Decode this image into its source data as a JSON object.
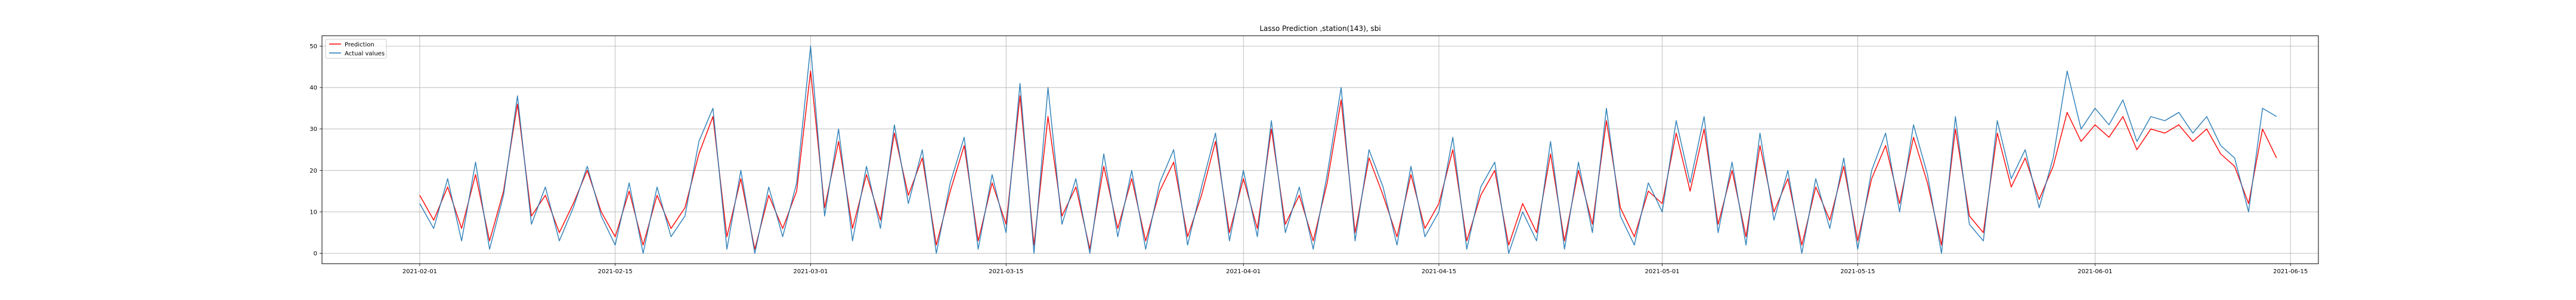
{
  "chart_data": {
    "type": "line",
    "title": "Lasso Prediction ,station(143), sbi",
    "xlabel": "",
    "ylabel": "",
    "x_domain": [
      "2021-01-25",
      "2021-06-17"
    ],
    "x_ticks": [
      "2021-02-01",
      "2021-02-15",
      "2021-03-01",
      "2021-03-15",
      "2021-04-01",
      "2021-04-15",
      "2021-05-01",
      "2021-05-15",
      "2021-06-01",
      "2021-06-15"
    ],
    "ylim": [
      -2.5,
      52.5
    ],
    "y_ticks": [
      0,
      10,
      20,
      30,
      40,
      50
    ],
    "grid": true,
    "legend_position": "top-left",
    "colors": {
      "prediction": "#ff0000",
      "actual": "#1f77b4"
    },
    "series": [
      {
        "name": "Prediction",
        "points": [
          [
            "2021-02-01",
            14
          ],
          [
            "2021-02-02",
            8
          ],
          [
            "2021-02-03",
            16
          ],
          [
            "2021-02-04",
            6
          ],
          [
            "2021-02-05",
            19
          ],
          [
            "2021-02-06",
            3
          ],
          [
            "2021-02-07",
            15
          ],
          [
            "2021-02-08",
            36
          ],
          [
            "2021-02-09",
            9
          ],
          [
            "2021-02-10",
            14
          ],
          [
            "2021-02-11",
            5
          ],
          [
            "2021-02-12",
            12
          ],
          [
            "2021-02-13",
            20
          ],
          [
            "2021-02-14",
            10
          ],
          [
            "2021-02-15",
            4
          ],
          [
            "2021-02-16",
            15
          ],
          [
            "2021-02-17",
            2
          ],
          [
            "2021-02-18",
            14
          ],
          [
            "2021-02-19",
            6
          ],
          [
            "2021-02-20",
            11
          ],
          [
            "2021-02-21",
            24
          ],
          [
            "2021-02-22",
            33
          ],
          [
            "2021-02-23",
            4
          ],
          [
            "2021-02-24",
            18
          ],
          [
            "2021-02-25",
            1
          ],
          [
            "2021-02-26",
            14
          ],
          [
            "2021-02-27",
            6
          ],
          [
            "2021-02-28",
            15
          ],
          [
            "2021-03-01",
            44
          ],
          [
            "2021-03-02",
            11
          ],
          [
            "2021-03-03",
            27
          ],
          [
            "2021-03-04",
            6
          ],
          [
            "2021-03-05",
            19
          ],
          [
            "2021-03-06",
            8
          ],
          [
            "2021-03-07",
            29
          ],
          [
            "2021-03-08",
            14
          ],
          [
            "2021-03-09",
            23
          ],
          [
            "2021-03-10",
            2
          ],
          [
            "2021-03-11",
            15
          ],
          [
            "2021-03-12",
            26
          ],
          [
            "2021-03-13",
            3
          ],
          [
            "2021-03-14",
            17
          ],
          [
            "2021-03-15",
            7
          ],
          [
            "2021-03-16",
            38
          ],
          [
            "2021-03-17",
            2
          ],
          [
            "2021-03-18",
            33
          ],
          [
            "2021-03-19",
            9
          ],
          [
            "2021-03-20",
            16
          ],
          [
            "2021-03-21",
            1
          ],
          [
            "2021-03-22",
            21
          ],
          [
            "2021-03-23",
            6
          ],
          [
            "2021-03-24",
            18
          ],
          [
            "2021-03-25",
            3
          ],
          [
            "2021-03-26",
            15
          ],
          [
            "2021-03-27",
            22
          ],
          [
            "2021-03-28",
            4
          ],
          [
            "2021-03-29",
            14
          ],
          [
            "2021-03-30",
            27
          ],
          [
            "2021-03-31",
            5
          ],
          [
            "2021-04-01",
            18
          ],
          [
            "2021-04-02",
            6
          ],
          [
            "2021-04-03",
            30
          ],
          [
            "2021-04-04",
            7
          ],
          [
            "2021-04-05",
            14
          ],
          [
            "2021-04-06",
            3
          ],
          [
            "2021-04-07",
            17
          ],
          [
            "2021-04-08",
            37
          ],
          [
            "2021-04-09",
            5
          ],
          [
            "2021-04-10",
            23
          ],
          [
            "2021-04-11",
            14
          ],
          [
            "2021-04-12",
            4
          ],
          [
            "2021-04-13",
            19
          ],
          [
            "2021-04-14",
            6
          ],
          [
            "2021-04-15",
            12
          ],
          [
            "2021-04-16",
            25
          ],
          [
            "2021-04-17",
            3
          ],
          [
            "2021-04-18",
            14
          ],
          [
            "2021-04-19",
            20
          ],
          [
            "2021-04-20",
            2
          ],
          [
            "2021-04-21",
            12
          ],
          [
            "2021-04-22",
            5
          ],
          [
            "2021-04-23",
            24
          ],
          [
            "2021-04-24",
            3
          ],
          [
            "2021-04-25",
            20
          ],
          [
            "2021-04-26",
            7
          ],
          [
            "2021-04-27",
            32
          ],
          [
            "2021-04-28",
            11
          ],
          [
            "2021-04-29",
            4
          ],
          [
            "2021-04-30",
            15
          ],
          [
            "2021-05-01",
            12
          ],
          [
            "2021-05-02",
            29
          ],
          [
            "2021-05-03",
            15
          ],
          [
            "2021-05-04",
            30
          ],
          [
            "2021-05-05",
            7
          ],
          [
            "2021-05-06",
            20
          ],
          [
            "2021-05-07",
            4
          ],
          [
            "2021-05-08",
            26
          ],
          [
            "2021-05-09",
            10
          ],
          [
            "2021-05-10",
            18
          ],
          [
            "2021-05-11",
            2
          ],
          [
            "2021-05-12",
            16
          ],
          [
            "2021-05-13",
            8
          ],
          [
            "2021-05-14",
            21
          ],
          [
            "2021-05-15",
            3
          ],
          [
            "2021-05-16",
            18
          ],
          [
            "2021-05-17",
            26
          ],
          [
            "2021-05-18",
            12
          ],
          [
            "2021-05-19",
            28
          ],
          [
            "2021-05-20",
            17
          ],
          [
            "2021-05-21",
            2
          ],
          [
            "2021-05-22",
            30
          ],
          [
            "2021-05-23",
            9
          ],
          [
            "2021-05-24",
            5
          ],
          [
            "2021-05-25",
            29
          ],
          [
            "2021-05-26",
            16
          ],
          [
            "2021-05-27",
            23
          ],
          [
            "2021-05-28",
            13
          ],
          [
            "2021-05-29",
            21
          ],
          [
            "2021-05-30",
            34
          ],
          [
            "2021-05-31",
            27
          ],
          [
            "2021-06-01",
            31
          ],
          [
            "2021-06-02",
            28
          ],
          [
            "2021-06-03",
            33
          ],
          [
            "2021-06-04",
            25
          ],
          [
            "2021-06-05",
            30
          ],
          [
            "2021-06-06",
            29
          ],
          [
            "2021-06-07",
            31
          ],
          [
            "2021-06-08",
            27
          ],
          [
            "2021-06-09",
            30
          ],
          [
            "2021-06-10",
            24
          ],
          [
            "2021-06-11",
            21
          ],
          [
            "2021-06-12",
            12
          ],
          [
            "2021-06-13",
            30
          ],
          [
            "2021-06-14",
            23
          ]
        ]
      },
      {
        "name": "Actual values",
        "points": [
          [
            "2021-02-01",
            12
          ],
          [
            "2021-02-02",
            6
          ],
          [
            "2021-02-03",
            18
          ],
          [
            "2021-02-04",
            3
          ],
          [
            "2021-02-05",
            22
          ],
          [
            "2021-02-06",
            1
          ],
          [
            "2021-02-07",
            14
          ],
          [
            "2021-02-08",
            38
          ],
          [
            "2021-02-09",
            7
          ],
          [
            "2021-02-10",
            16
          ],
          [
            "2021-02-11",
            3
          ],
          [
            "2021-02-12",
            11
          ],
          [
            "2021-02-13",
            21
          ],
          [
            "2021-02-14",
            9
          ],
          [
            "2021-02-15",
            2
          ],
          [
            "2021-02-16",
            17
          ],
          [
            "2021-02-17",
            0
          ],
          [
            "2021-02-18",
            16
          ],
          [
            "2021-02-19",
            4
          ],
          [
            "2021-02-20",
            9
          ],
          [
            "2021-02-21",
            27
          ],
          [
            "2021-02-22",
            35
          ],
          [
            "2021-02-23",
            1
          ],
          [
            "2021-02-24",
            20
          ],
          [
            "2021-02-25",
            0
          ],
          [
            "2021-02-26",
            16
          ],
          [
            "2021-02-27",
            4
          ],
          [
            "2021-02-28",
            17
          ],
          [
            "2021-03-01",
            50
          ],
          [
            "2021-03-02",
            9
          ],
          [
            "2021-03-03",
            30
          ],
          [
            "2021-03-04",
            3
          ],
          [
            "2021-03-05",
            21
          ],
          [
            "2021-03-06",
            6
          ],
          [
            "2021-03-07",
            31
          ],
          [
            "2021-03-08",
            12
          ],
          [
            "2021-03-09",
            25
          ],
          [
            "2021-03-10",
            0
          ],
          [
            "2021-03-11",
            17
          ],
          [
            "2021-03-12",
            28
          ],
          [
            "2021-03-13",
            1
          ],
          [
            "2021-03-14",
            19
          ],
          [
            "2021-03-15",
            5
          ],
          [
            "2021-03-16",
            41
          ],
          [
            "2021-03-17",
            0
          ],
          [
            "2021-03-18",
            40
          ],
          [
            "2021-03-19",
            7
          ],
          [
            "2021-03-20",
            18
          ],
          [
            "2021-03-21",
            0
          ],
          [
            "2021-03-22",
            24
          ],
          [
            "2021-03-23",
            4
          ],
          [
            "2021-03-24",
            20
          ],
          [
            "2021-03-25",
            1
          ],
          [
            "2021-03-26",
            17
          ],
          [
            "2021-03-27",
            25
          ],
          [
            "2021-03-28",
            2
          ],
          [
            "2021-03-29",
            16
          ],
          [
            "2021-03-30",
            29
          ],
          [
            "2021-03-31",
            3
          ],
          [
            "2021-04-01",
            20
          ],
          [
            "2021-04-02",
            4
          ],
          [
            "2021-04-03",
            32
          ],
          [
            "2021-04-04",
            5
          ],
          [
            "2021-04-05",
            16
          ],
          [
            "2021-04-06",
            1
          ],
          [
            "2021-04-07",
            19
          ],
          [
            "2021-04-08",
            40
          ],
          [
            "2021-04-09",
            3
          ],
          [
            "2021-04-10",
            25
          ],
          [
            "2021-04-11",
            16
          ],
          [
            "2021-04-12",
            2
          ],
          [
            "2021-04-13",
            21
          ],
          [
            "2021-04-14",
            4
          ],
          [
            "2021-04-15",
            10
          ],
          [
            "2021-04-16",
            28
          ],
          [
            "2021-04-17",
            1
          ],
          [
            "2021-04-18",
            16
          ],
          [
            "2021-04-19",
            22
          ],
          [
            "2021-04-20",
            0
          ],
          [
            "2021-04-21",
            10
          ],
          [
            "2021-04-22",
            3
          ],
          [
            "2021-04-23",
            27
          ],
          [
            "2021-04-24",
            1
          ],
          [
            "2021-04-25",
            22
          ],
          [
            "2021-04-26",
            5
          ],
          [
            "2021-04-27",
            35
          ],
          [
            "2021-04-28",
            9
          ],
          [
            "2021-04-29",
            2
          ],
          [
            "2021-04-30",
            17
          ],
          [
            "2021-05-01",
            10
          ],
          [
            "2021-05-02",
            32
          ],
          [
            "2021-05-03",
            17
          ],
          [
            "2021-05-04",
            33
          ],
          [
            "2021-05-05",
            5
          ],
          [
            "2021-05-06",
            22
          ],
          [
            "2021-05-07",
            2
          ],
          [
            "2021-05-08",
            29
          ],
          [
            "2021-05-09",
            8
          ],
          [
            "2021-05-10",
            20
          ],
          [
            "2021-05-11",
            0
          ],
          [
            "2021-05-12",
            18
          ],
          [
            "2021-05-13",
            6
          ],
          [
            "2021-05-14",
            23
          ],
          [
            "2021-05-15",
            1
          ],
          [
            "2021-05-16",
            20
          ],
          [
            "2021-05-17",
            29
          ],
          [
            "2021-05-18",
            10
          ],
          [
            "2021-05-19",
            31
          ],
          [
            "2021-05-20",
            19
          ],
          [
            "2021-05-21",
            0
          ],
          [
            "2021-05-22",
            33
          ],
          [
            "2021-05-23",
            7
          ],
          [
            "2021-05-24",
            3
          ],
          [
            "2021-05-25",
            32
          ],
          [
            "2021-05-26",
            18
          ],
          [
            "2021-05-27",
            25
          ],
          [
            "2021-05-28",
            11
          ],
          [
            "2021-05-29",
            23
          ],
          [
            "2021-05-30",
            44
          ],
          [
            "2021-05-31",
            30
          ],
          [
            "2021-06-01",
            35
          ],
          [
            "2021-06-02",
            31
          ],
          [
            "2021-06-03",
            37
          ],
          [
            "2021-06-04",
            27
          ],
          [
            "2021-06-05",
            33
          ],
          [
            "2021-06-06",
            32
          ],
          [
            "2021-06-07",
            34
          ],
          [
            "2021-06-08",
            29
          ],
          [
            "2021-06-09",
            33
          ],
          [
            "2021-06-10",
            26
          ],
          [
            "2021-06-11",
            23
          ],
          [
            "2021-06-12",
            10
          ],
          [
            "2021-06-13",
            35
          ],
          [
            "2021-06-14",
            33
          ]
        ]
      }
    ]
  }
}
